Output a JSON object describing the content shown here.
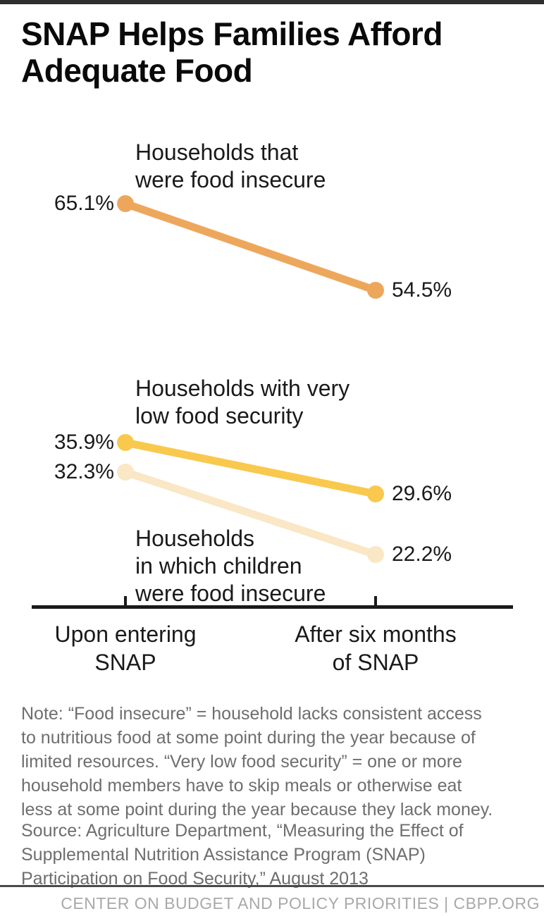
{
  "header": {
    "title": "SNAP Helps Families Afford Adequate Food",
    "title_lines": [
      "SNAP Helps Families Afford",
      "Adequate Food"
    ]
  },
  "chart_data": {
    "type": "line",
    "subtype": "slopegraph",
    "title": "SNAP Helps Families Afford Adequate Food",
    "categories": [
      "Upon entering SNAP",
      "After six months of SNAP"
    ],
    "x_tick_label_lines": [
      [
        "Upon entering",
        "SNAP"
      ],
      [
        "After six months",
        "of SNAP"
      ]
    ],
    "series": [
      {
        "name": "Households that were food insecure",
        "label_lines": [
          "Households that",
          "were food insecure"
        ],
        "values": [
          65.1,
          54.5
        ],
        "value_labels": [
          "65.1%",
          "54.5%"
        ],
        "color": "#eda75c"
      },
      {
        "name": "Households with very low food security",
        "label_lines": [
          "Households with very",
          "low food security"
        ],
        "values": [
          35.9,
          29.6
        ],
        "value_labels": [
          "35.9%",
          "29.6%"
        ],
        "color": "#f9c94e"
      },
      {
        "name": "Households in which children were food insecure",
        "label_lines": [
          "Households",
          "in which children",
          "were food insecure"
        ],
        "values": [
          32.3,
          22.2
        ],
        "value_labels": [
          "32.3%",
          "22.2%"
        ],
        "color": "#fae7c6"
      }
    ],
    "unit": "%",
    "ylim": [
      15,
      70
    ],
    "grid": false,
    "legend": "inline-labels",
    "axis_color": "#1a1a1a"
  },
  "note": {
    "lines": [
      "Note: “Food insecure” = household lacks consistent access",
      "to nutritious food at some point during the year because of",
      "limited resources. “Very low food security” = one or more",
      "household members have to skip meals or otherwise eat",
      "less at some point during the year because they lack money."
    ]
  },
  "source": {
    "lines": [
      "Source: Agriculture Department, “Measuring the Effect of",
      "Supplemental Nutrition Assistance Program (SNAP)",
      "Participation on Food Security,” August 2013"
    ]
  },
  "footer": {
    "text": "CENTER ON BUDGET AND POLICY PRIORITIES | CBPP.ORG"
  },
  "colors": {
    "top_bar": "#2e2e2e",
    "title_text": "#0a0a0a",
    "chart_text": "#1a1a1a",
    "note_text": "#6e6e6e",
    "footer_rule": "#4a4a4a",
    "footer_text": "#a9a9a9",
    "series_1": "#eda75c",
    "series_2": "#f9c94e",
    "series_3": "#fae7c6"
  }
}
